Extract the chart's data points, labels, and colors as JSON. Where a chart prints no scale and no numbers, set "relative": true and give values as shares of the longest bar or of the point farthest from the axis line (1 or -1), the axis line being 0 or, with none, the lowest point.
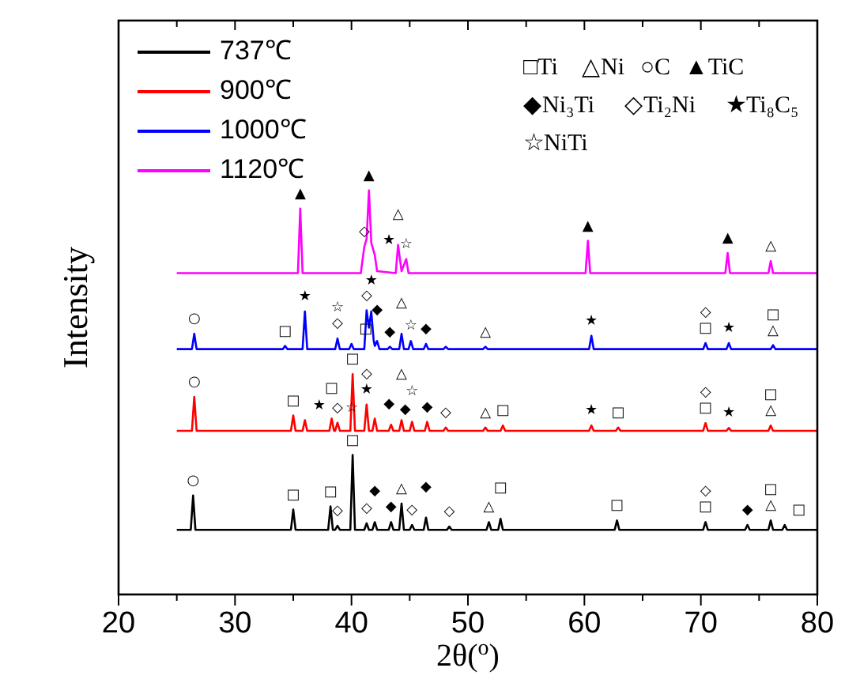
{
  "chart_data": {
    "type": "line",
    "relative": true,
    "xlabel": "2θ($^{o}$)",
    "ylabel": "Intensity",
    "xlim": [
      20,
      80
    ],
    "xticks": [
      20,
      {
        "value": 25,
        "label": null
      },
      30,
      {
        "value": 35,
        "label": null
      },
      40,
      {
        "value": 45,
        "label": null
      },
      50,
      {
        "value": 55,
        "label": null
      },
      60,
      {
        "value": 65,
        "label": null
      },
      70,
      {
        "value": 75,
        "label": null
      },
      80
    ],
    "legend": "top left",
    "grid": false,
    "marker": "none",
    "line_style": "solid",
    "series": [
      {
        "name": "737℃",
        "color": "#000000",
        "x": [
          25,
          26.2,
          26.4,
          26.6,
          34.8,
          35,
          35.2,
          38,
          38.2,
          38.4,
          38.6,
          38.8,
          39,
          39.9,
          40.1,
          40.3,
          41.1,
          41.3,
          41.5,
          41.8,
          42,
          42.2,
          43.2,
          43.4,
          43.6,
          44.1,
          44.3,
          44.5,
          45,
          45.2,
          45.4,
          46.2,
          46.4,
          46.6,
          48.2,
          48.4,
          48.6,
          51.6,
          51.8,
          52,
          52.6,
          52.8,
          53,
          62.6,
          62.8,
          63,
          70.2,
          70.4,
          70.6,
          73.8,
          74,
          74.2,
          75.8,
          76,
          76.2,
          77,
          77.2,
          77.4,
          80
        ],
        "values": [
          0.16,
          0.16,
          0.245,
          0.16,
          0.16,
          0.21,
          0.16,
          0.16,
          0.218,
          0.16,
          0.16,
          0.17,
          0.16,
          0.16,
          0.345,
          0.16,
          0.16,
          0.176,
          0.16,
          0.16,
          0.179,
          0.16,
          0.16,
          0.179,
          0.16,
          0.16,
          0.225,
          0.16,
          0.16,
          0.172,
          0.16,
          0.16,
          0.19,
          0.16,
          0.16,
          0.168,
          0.16,
          0.16,
          0.179,
          0.16,
          0.16,
          0.187,
          0.16,
          0.16,
          0.183,
          0.16,
          0.16,
          0.179,
          0.16,
          0.16,
          0.172,
          0.16,
          0.16,
          0.183,
          0.16,
          0.16,
          0.172,
          0.16,
          0.16
        ]
      },
      {
        "name": "900℃",
        "color": "#ff0000",
        "x": [
          25,
          26.3,
          26.5,
          26.7,
          34.8,
          35,
          35.2,
          35.8,
          36,
          36.2,
          38.1,
          38.3,
          38.5,
          38.6,
          38.8,
          39,
          39.9,
          40.1,
          40.3,
          41.1,
          41.3,
          41.5,
          41.8,
          42,
          42.2,
          43.2,
          43.4,
          43.6,
          44.1,
          44.3,
          44.5,
          45,
          45.2,
          45.4,
          46.3,
          46.5,
          46.7,
          47.9,
          48.1,
          48.3,
          51.3,
          51.5,
          51.7,
          52.8,
          53,
          53.2,
          60.4,
          60.6,
          60.8,
          62.7,
          62.9,
          63.1,
          70.2,
          70.4,
          70.6,
          72.2,
          72.4,
          72.6,
          75.8,
          76,
          76.2,
          80
        ],
        "values": [
          0.405,
          0.405,
          0.489,
          0.405,
          0.405,
          0.443,
          0.405,
          0.405,
          0.431,
          0.405,
          0.405,
          0.435,
          0.405,
          0.405,
          0.425,
          0.405,
          0.405,
          0.545,
          0.405,
          0.405,
          0.47,
          0.405,
          0.405,
          0.435,
          0.405,
          0.405,
          0.42,
          0.405,
          0.405,
          0.431,
          0.405,
          0.405,
          0.427,
          0.405,
          0.405,
          0.427,
          0.405,
          0.405,
          0.413,
          0.405,
          0.405,
          0.413,
          0.405,
          0.405,
          0.418,
          0.405,
          0.405,
          0.418,
          0.405,
          0.405,
          0.413,
          0.405,
          0.405,
          0.424,
          0.405,
          0.405,
          0.412,
          0.405,
          0.405,
          0.418,
          0.405,
          0.405
        ]
      },
      {
        "name": "1000℃",
        "color": "#0000ff",
        "x": [
          25,
          26.3,
          26.5,
          26.7,
          34.1,
          34.3,
          34.5,
          35.8,
          36,
          36.2,
          38.6,
          38.8,
          39,
          39.8,
          40,
          40.2,
          41.1,
          41.3,
          41.5,
          41.7,
          41.9,
          42,
          42.2,
          42.4,
          43.1,
          43.3,
          43.5,
          44.1,
          44.3,
          44.5,
          44.9,
          45.1,
          45.3,
          46.2,
          46.4,
          46.6,
          47.9,
          48.1,
          48.3,
          51.3,
          51.5,
          51.7,
          60.4,
          60.6,
          60.8,
          70.2,
          70.4,
          70.6,
          72.2,
          72.4,
          72.6,
          76,
          76.2,
          76.4,
          80
        ],
        "values": [
          0.607,
          0.607,
          0.645,
          0.607,
          0.607,
          0.615,
          0.607,
          0.607,
          0.7,
          0.607,
          0.607,
          0.633,
          0.607,
          0.607,
          0.62,
          0.607,
          0.607,
          0.703,
          0.66,
          0.7,
          0.63,
          0.615,
          0.627,
          0.607,
          0.607,
          0.613,
          0.607,
          0.607,
          0.645,
          0.607,
          0.607,
          0.627,
          0.607,
          0.607,
          0.62,
          0.607,
          0.607,
          0.613,
          0.607,
          0.607,
          0.613,
          0.607,
          0.607,
          0.64,
          0.607,
          0.607,
          0.622,
          0.607,
          0.607,
          0.622,
          0.607,
          0.607,
          0.617,
          0.607,
          0.607
        ]
      },
      {
        "name": "1120℃",
        "color": "#ff00ff",
        "x": [
          25,
          35.4,
          35.6,
          35.8,
          40.8,
          41.1,
          41.3,
          41.5,
          41.7,
          42,
          42.2,
          43.8,
          44,
          44.3,
          44.7,
          44.9,
          60.1,
          60.3,
          60.5,
          72.1,
          72.3,
          72.5,
          75.8,
          76,
          76.2,
          80
        ],
        "values": [
          0.795,
          0.795,
          0.955,
          0.795,
          0.795,
          0.86,
          0.88,
          1,
          0.87,
          0.84,
          0.8,
          0.795,
          0.865,
          0.8,
          0.83,
          0.795,
          0.795,
          0.875,
          0.795,
          0.795,
          0.845,
          0.795,
          0.795,
          0.825,
          0.795,
          0.795
        ]
      }
    ],
    "annotations": [
      "□Ti",
      "△Ni",
      "○C",
      "▲TiC",
      "◆Ni₃Ti",
      "◇Ti₂Ni",
      "★Ti₈C₅",
      "☆NiTi",
      {
        "text": "○",
        "x": 26.4,
        "y": 0.245
      },
      {
        "text": "□",
        "x": 35,
        "y": 0.21
      },
      {
        "text": "□",
        "x": 38.2,
        "y": 0.218
      },
      {
        "text": "◇",
        "x": 38.8,
        "y": 0.17
      },
      {
        "text": "□",
        "x": 40.1,
        "y": 0.345
      },
      {
        "text": "◇",
        "x": 41.3,
        "y": 0.176
      },
      {
        "text": "◆",
        "x": 42,
        "y": 0.179
      },
      {
        "text": "◆",
        "x": 43.4,
        "y": 0.179
      },
      {
        "text": "△",
        "x": 44.3,
        "y": 0.225
      },
      {
        "text": "◇",
        "x": 45.2,
        "y": 0.172
      },
      {
        "text": "◆",
        "x": 46.4,
        "y": 0.19
      },
      {
        "text": "◇",
        "x": 48.4,
        "y": 0.168
      },
      {
        "text": "△",
        "x": 51.8,
        "y": 0.179
      },
      {
        "text": "□",
        "x": 52.8,
        "y": 0.187
      },
      {
        "text": "□",
        "x": 62.8,
        "y": 0.183
      },
      {
        "text": "□",
        "x": 70.4,
        "y": 0.179
      },
      {
        "text": "◇",
        "x": 70.4,
        "y": 0.179
      },
      {
        "text": "◆",
        "x": 74,
        "y": 0.172
      },
      {
        "text": "△",
        "x": 76,
        "y": 0.183
      },
      {
        "text": "□",
        "x": 76,
        "y": 0.183
      },
      {
        "text": "□",
        "x": 77.2,
        "y": 0.172
      },
      {
        "text": "○",
        "x": 26.5,
        "y": 0.489
      },
      {
        "text": "□",
        "x": 35,
        "y": 0.443
      },
      {
        "text": "★",
        "x": 36,
        "y": 0.431
      },
      {
        "text": "□",
        "x": 38.3,
        "y": 0.435
      },
      {
        "text": "◇",
        "x": 38.8,
        "y": 0.425
      },
      {
        "text": "☆",
        "x": 38.8,
        "y": 0.425
      },
      {
        "text": "□",
        "x": 40.1,
        "y": 0.545
      },
      {
        "text": "★",
        "x": 41.3,
        "y": 0.47
      },
      {
        "text": "◇",
        "x": 41.3,
        "y": 0.47
      },
      {
        "text": "◆",
        "x": 42,
        "y": 0.435
      },
      {
        "text": "◆",
        "x": 43.4,
        "y": 0.42
      },
      {
        "text": "△",
        "x": 44.3,
        "y": 0.431
      },
      {
        "text": "☆",
        "x": 45.2,
        "y": 0.427
      },
      {
        "text": "◆",
        "x": 46.5,
        "y": 0.427
      },
      {
        "text": "◇",
        "x": 48.1,
        "y": 0.413
      },
      {
        "text": "△",
        "x": 51.5,
        "y": 0.413
      },
      {
        "text": "□",
        "x": 53,
        "y": 0.418
      },
      {
        "text": "★",
        "x": 60.6,
        "y": 0.418
      },
      {
        "text": "□",
        "x": 62.9,
        "y": 0.413
      },
      {
        "text": "□",
        "x": 70.4,
        "y": 0.424
      },
      {
        "text": "◇",
        "x": 70.4,
        "y": 0.424
      },
      {
        "text": "★",
        "x": 72.4,
        "y": 0.412
      },
      {
        "text": "△",
        "x": 76,
        "y": 0.418
      },
      {
        "text": "□",
        "x": 76,
        "y": 0.418
      },
      {
        "text": "○",
        "x": 26.5,
        "y": 0.645
      },
      {
        "text": "□",
        "x": 34.3,
        "y": 0.615
      },
      {
        "text": "★",
        "x": 36,
        "y": 0.7
      },
      {
        "text": "◇",
        "x": 38.8,
        "y": 0.633
      },
      {
        "text": "☆",
        "x": 38.8,
        "y": 0.633
      },
      {
        "text": "□",
        "x": 40,
        "y": 0.62
      },
      {
        "text": "◇",
        "x": 41.3,
        "y": 0.703
      },
      {
        "text": "★",
        "x": 41.7,
        "y": 0.7
      },
      {
        "text": "◆",
        "x": 42.2,
        "y": 0.627
      },
      {
        "text": "◆",
        "x": 43.3,
        "y": 0.613
      },
      {
        "text": "△",
        "x": 44.3,
        "y": 0.645
      },
      {
        "text": "☆",
        "x": 45.1,
        "y": 0.627
      },
      {
        "text": "◆",
        "x": 46.4,
        "y": 0.62
      },
      {
        "text": "△",
        "x": 51.5,
        "y": 0.613
      },
      {
        "text": "★",
        "x": 60.6,
        "y": 0.64
      },
      {
        "text": "□",
        "x": 70.4,
        "y": 0.622
      },
      {
        "text": "◇",
        "x": 70.4,
        "y": 0.622
      },
      {
        "text": "★",
        "x": 72.4,
        "y": 0.622
      },
      {
        "text": "△",
        "x": 76.2,
        "y": 0.617
      },
      {
        "text": "□",
        "x": 76.2,
        "y": 0.617
      },
      {
        "text": "▲",
        "x": 35.6,
        "y": 0.955
      },
      {
        "text": "▲",
        "x": 41.5,
        "y": 1
      },
      {
        "text": "◇",
        "x": 41.1,
        "y": 0.86
      },
      {
        "text": "★",
        "x": 42,
        "y": 0.84
      },
      {
        "text": "△",
        "x": 44,
        "y": 0.865
      },
      {
        "text": "☆",
        "x": 44.7,
        "y": 0.83
      },
      {
        "text": "▲",
        "x": 60.3,
        "y": 0.875
      },
      {
        "text": "▲",
        "x": 72.3,
        "y": 0.845
      },
      {
        "text": "△",
        "x": 76,
        "y": 0.825
      }
    ]
  }
}
